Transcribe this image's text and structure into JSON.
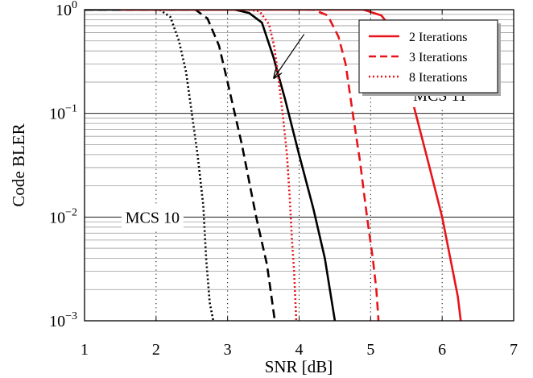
{
  "chart_data": {
    "type": "line",
    "xlabel": "SNR [dB]",
    "ylabel": "Code BLER",
    "xlim": [
      1,
      7
    ],
    "ylim": [
      0.001,
      1
    ],
    "yscale": "log",
    "x_ticks": [
      1,
      2,
      3,
      4,
      5,
      6,
      7
    ],
    "x_tick_labels": [
      "1",
      "2",
      "3",
      "4",
      "5",
      "6",
      "7"
    ],
    "y_ticks": [
      {
        "value": 1,
        "base": "10",
        "exp": "0"
      },
      {
        "value": 0.1,
        "base": "10",
        "exp": "−1"
      },
      {
        "value": 0.01,
        "base": "10",
        "exp": "−2"
      },
      {
        "value": 0.001,
        "base": "10",
        "exp": "−3"
      }
    ],
    "grid": {
      "major_x": "dotted",
      "major_y": "solid",
      "minor_y": "solid"
    },
    "legend": {
      "placement": "top-right",
      "entries": [
        {
          "label": "2 Iterations",
          "style": "solid"
        },
        {
          "label": "3 Iterations",
          "style": "dashed"
        },
        {
          "label": "8 Iterations",
          "style": "dotted"
        }
      ]
    },
    "annotations": [
      {
        "text": "MCS 10",
        "x": 1.95,
        "y": 0.01
      },
      {
        "text": "MCS 11",
        "x": 5.97,
        "y": 0.15
      }
    ],
    "arrow": {
      "from": [
        4.07,
        0.58
      ],
      "to": [
        3.65,
        0.22
      ]
    },
    "colors": {
      "mcs10": "#000000",
      "mcs11": "#e8141a"
    },
    "series": [
      {
        "group": "MCS 10",
        "iterations": 2,
        "style": "solid",
        "color": "#000000",
        "points": [
          [
            1.0,
            1
          ],
          [
            3.1,
            1
          ],
          [
            3.3,
            0.93
          ],
          [
            3.48,
            0.75
          ],
          [
            3.64,
            0.35
          ],
          [
            3.8,
            0.14
          ],
          [
            4.0,
            0.04
          ],
          [
            4.2,
            0.012
          ],
          [
            4.36,
            0.004
          ],
          [
            4.43,
            0.002
          ],
          [
            4.5,
            0.001
          ]
        ]
      },
      {
        "group": "MCS 10",
        "iterations": 3,
        "style": "dashed",
        "color": "#000000",
        "points": [
          [
            1.0,
            1
          ],
          [
            2.55,
            1
          ],
          [
            2.72,
            0.82
          ],
          [
            2.88,
            0.45
          ],
          [
            3.0,
            0.2
          ],
          [
            3.2,
            0.05
          ],
          [
            3.4,
            0.01
          ],
          [
            3.55,
            0.0035
          ],
          [
            3.6,
            0.002
          ],
          [
            3.66,
            0.001
          ]
        ]
      },
      {
        "group": "MCS 10",
        "iterations": 8,
        "style": "dotted",
        "color": "#000000",
        "points": [
          [
            2.05,
            1
          ],
          [
            2.2,
            0.85
          ],
          [
            2.32,
            0.5
          ],
          [
            2.42,
            0.25
          ],
          [
            2.5,
            0.1
          ],
          [
            2.58,
            0.04
          ],
          [
            2.66,
            0.013
          ],
          [
            2.7,
            0.004
          ],
          [
            2.75,
            0.0015
          ],
          [
            2.8,
            0.001
          ]
        ]
      },
      {
        "group": "MCS 11",
        "iterations": 2,
        "style": "solid",
        "color": "#e8141a",
        "points": [
          [
            1.5,
            1
          ],
          [
            4.9,
            1
          ],
          [
            5.15,
            0.88
          ],
          [
            5.3,
            0.65
          ],
          [
            5.42,
            0.35
          ],
          [
            5.6,
            0.12
          ],
          [
            5.8,
            0.035
          ],
          [
            6.0,
            0.01
          ],
          [
            6.15,
            0.003
          ],
          [
            6.22,
            0.0017
          ],
          [
            6.26,
            0.001
          ]
        ]
      },
      {
        "group": "MCS 11",
        "iterations": 3,
        "style": "dashed",
        "color": "#e8141a",
        "points": [
          [
            3.9,
            1
          ],
          [
            4.2,
            1
          ],
          [
            4.4,
            0.88
          ],
          [
            4.55,
            0.55
          ],
          [
            4.65,
            0.3
          ],
          [
            4.75,
            0.1
          ],
          [
            4.85,
            0.035
          ],
          [
            4.95,
            0.01
          ],
          [
            5.03,
            0.004
          ],
          [
            5.08,
            0.002
          ],
          [
            5.11,
            0.001
          ]
        ]
      },
      {
        "group": "MCS 11",
        "iterations": 8,
        "style": "dotted",
        "color": "#e8141a",
        "points": [
          [
            3.3,
            1
          ],
          [
            3.45,
            0.96
          ],
          [
            3.58,
            0.72
          ],
          [
            3.65,
            0.45
          ],
          [
            3.7,
            0.25
          ],
          [
            3.77,
            0.1
          ],
          [
            3.83,
            0.04
          ],
          [
            3.87,
            0.015
          ],
          [
            3.9,
            0.006
          ],
          [
            3.93,
            0.003
          ],
          [
            3.96,
            0.001
          ]
        ]
      }
    ]
  }
}
